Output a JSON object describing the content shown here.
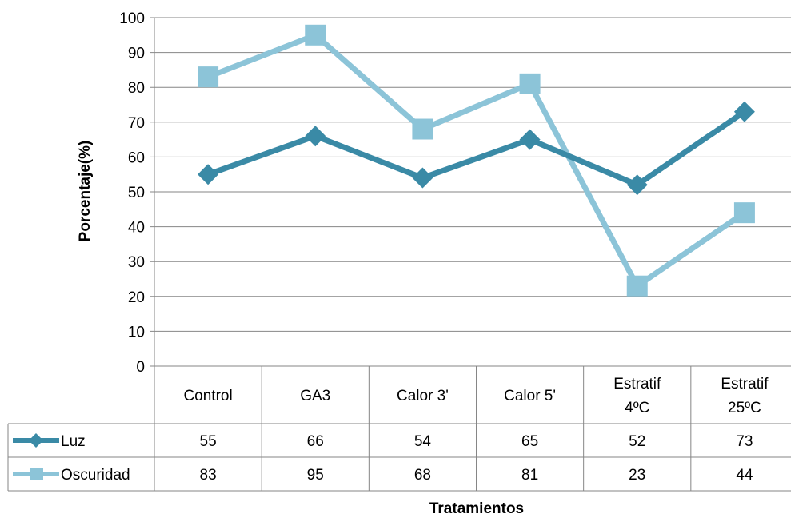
{
  "chart_data": {
    "type": "line",
    "categories": [
      [
        "Control"
      ],
      [
        "GA3"
      ],
      [
        "Calor 3'"
      ],
      [
        "Calor 5'"
      ],
      [
        "Estratif",
        "4ºC"
      ],
      [
        "Estratif",
        "25ºC"
      ]
    ],
    "series": [
      {
        "name": "Luz",
        "values": [
          55,
          66,
          54,
          65,
          52,
          73
        ],
        "color": "#3a8aa6",
        "marker": "diamond"
      },
      {
        "name": "Oscuridad",
        "values": [
          83,
          95,
          68,
          81,
          23,
          44
        ],
        "color": "#8cc4d8",
        "marker": "square"
      }
    ],
    "xlabel": "Tratamientos",
    "ylabel": "Porcentaje(%)",
    "ylim": [
      0,
      100
    ],
    "yticks": [
      0,
      10,
      20,
      30,
      40,
      50,
      60,
      70,
      80,
      90,
      100
    ],
    "grid": true,
    "legend": "data-table",
    "gridline_color": "#868686",
    "axis_color": "#868686"
  }
}
